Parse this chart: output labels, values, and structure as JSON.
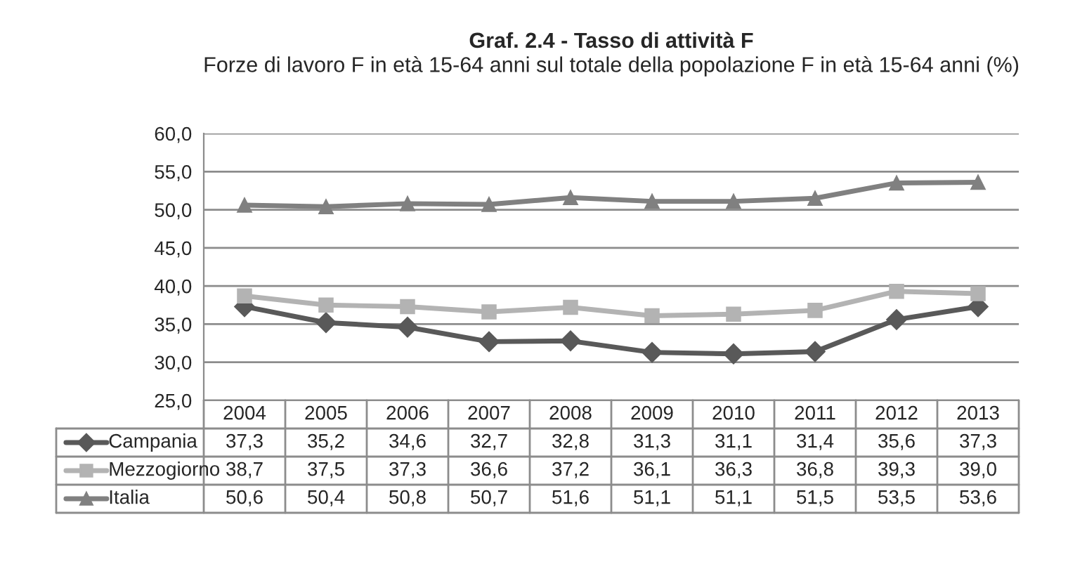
{
  "chart_data": {
    "type": "line",
    "title": "Graf. 2.4 - Tasso di attività F",
    "subtitle": "Forze di lavoro F in età 15-64 anni sul totale della popolazione F in età 15-64 anni (%)",
    "categories": [
      "2004",
      "2005",
      "2006",
      "2007",
      "2008",
      "2009",
      "2010",
      "2011",
      "2012",
      "2013"
    ],
    "series": [
      {
        "name": "Campania",
        "color": "#595959",
        "marker": "diamond",
        "values": [
          37.3,
          35.2,
          34.6,
          32.7,
          32.8,
          31.3,
          31.1,
          31.4,
          35.6,
          37.3
        ],
        "value_labels": [
          "37,3",
          "35,2",
          "34,6",
          "32,7",
          "32,8",
          "31,3",
          "31,1",
          "31,4",
          "35,6",
          "37,3"
        ]
      },
      {
        "name": "Mezzogiorno",
        "color": "#b3b3b3",
        "marker": "square",
        "values": [
          38.7,
          37.5,
          37.3,
          36.6,
          37.2,
          36.1,
          36.3,
          36.8,
          39.3,
          39.0
        ],
        "value_labels": [
          "38,7",
          "37,5",
          "37,3",
          "36,6",
          "37,2",
          "36,1",
          "36,3",
          "36,8",
          "39,3",
          "39,0"
        ]
      },
      {
        "name": "Italia",
        "color": "#808080",
        "marker": "triangle",
        "values": [
          50.6,
          50.4,
          50.8,
          50.7,
          51.6,
          51.1,
          51.1,
          51.5,
          53.5,
          53.6
        ],
        "value_labels": [
          "50,6",
          "50,4",
          "50,8",
          "50,7",
          "51,6",
          "51,1",
          "51,1",
          "51,5",
          "53,5",
          "53,6"
        ]
      }
    ],
    "ylim": [
      25,
      60
    ],
    "yticks": [
      {
        "value": 25,
        "label": "25,0"
      },
      {
        "value": 30,
        "label": "30,0"
      },
      {
        "value": 35,
        "label": "35,0"
      },
      {
        "value": 40,
        "label": "40,0"
      },
      {
        "value": 45,
        "label": "45,0"
      },
      {
        "value": 50,
        "label": "50,0"
      },
      {
        "value": 55,
        "label": "55,0"
      },
      {
        "value": 60,
        "label": "60,0"
      }
    ],
    "grid": "y",
    "legend": "bottom"
  }
}
